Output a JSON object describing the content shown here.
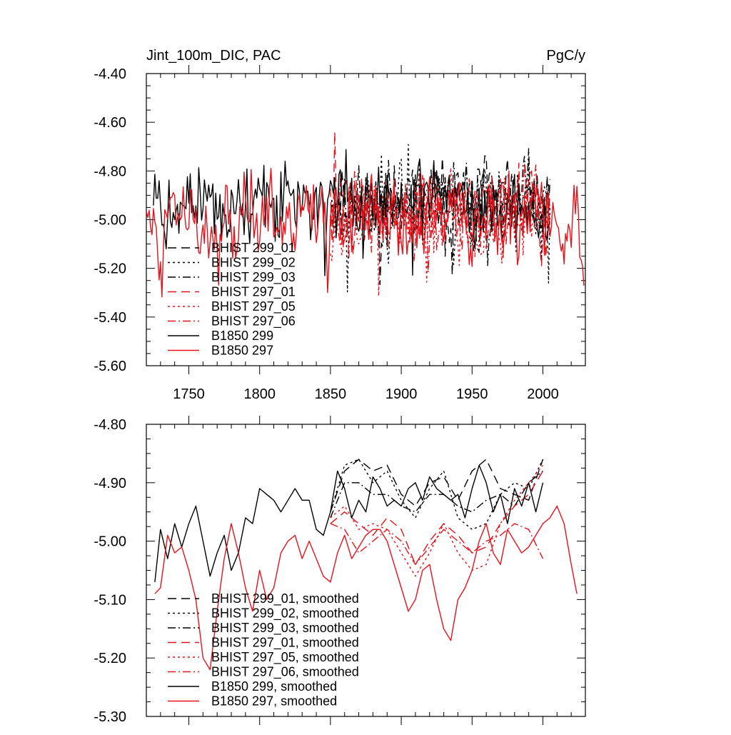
{
  "colors": {
    "black": "#000000",
    "red": "#e8111a"
  },
  "chart_data": [
    {
      "type": "line",
      "title_left": "Jint_100m_DIC, PAC",
      "title_right": "PgC/y",
      "xlim": [
        1720,
        2030
      ],
      "ylim": [
        -5.6,
        -4.4
      ],
      "xticks": [
        1750,
        1800,
        1850,
        1900,
        1950,
        2000
      ],
      "yticks": [
        -5.6,
        -5.4,
        -5.2,
        -5.0,
        -4.8,
        -4.6,
        -4.4
      ],
      "ytick_labels": [
        "-5.60",
        "-5.40",
        "-5.20",
        "-5.00",
        "-4.80",
        "-4.60",
        "-4.40"
      ],
      "xtick_labels": [
        "1750",
        "1800",
        "1850",
        "1900",
        "1950",
        "2000"
      ],
      "legend_position": "lower-left",
      "series": [
        {
          "name": "BHIST 299_01",
          "color": "black",
          "dash": "long-dash",
          "x_start": 1850,
          "x_end": 2005,
          "mean": -4.93,
          "spread": 0.15,
          "seed": 11
        },
        {
          "name": "BHIST 299_02",
          "color": "black",
          "dash": "dot",
          "x_start": 1850,
          "x_end": 2005,
          "mean": -4.94,
          "spread": 0.16,
          "seed": 23
        },
        {
          "name": "BHIST 299_03",
          "color": "black",
          "dash": "dash-dot",
          "x_start": 1850,
          "x_end": 2005,
          "mean": -4.93,
          "spread": 0.15,
          "seed": 37
        },
        {
          "name": "BHIST 297_01",
          "color": "red",
          "dash": "long-dash",
          "x_start": 1850,
          "x_end": 2005,
          "mean": -4.97,
          "spread": 0.16,
          "seed": 41
        },
        {
          "name": "BHIST 297_05",
          "color": "red",
          "dash": "dot",
          "x_start": 1850,
          "x_end": 2005,
          "mean": -4.98,
          "spread": 0.16,
          "seed": 53
        },
        {
          "name": "BHIST 297_06",
          "color": "red",
          "dash": "dash-dot",
          "x_start": 1850,
          "x_end": 2005,
          "mean": -4.97,
          "spread": 0.15,
          "seed": 67
        },
        {
          "name": "B1850 299",
          "color": "black",
          "dash": "solid",
          "x_start": 1725,
          "x_end": 2005,
          "mean": -4.93,
          "spread": 0.15,
          "seed": 71
        },
        {
          "name": "B1850 297",
          "color": "red",
          "dash": "solid",
          "x_start": 1720,
          "x_end": 2029,
          "mean": -5.0,
          "spread": 0.16,
          "seed": 83
        }
      ]
    },
    {
      "type": "line",
      "title_left": "",
      "title_right": "",
      "xlim": [
        1720,
        2030
      ],
      "ylim": [
        -5.3,
        -4.8
      ],
      "xticks": [
        1750,
        1800,
        1850,
        1900,
        1950,
        2000
      ],
      "yticks": [
        -5.3,
        -5.2,
        -5.1,
        -5.0,
        -4.9,
        -4.8
      ],
      "ytick_labels": [
        "-5.30",
        "-5.20",
        "-5.10",
        "-5.00",
        "-4.90",
        "-4.80"
      ],
      "legend_position": "lower-left",
      "series": [
        {
          "name": "BHIST 299_01, smoothed",
          "color": "black",
          "dash": "long-dash",
          "x": [
            1850,
            1860,
            1870,
            1880,
            1890,
            1900,
            1910,
            1920,
            1930,
            1940,
            1950,
            1960,
            1970,
            1980,
            1990,
            2000
          ],
          "y": [
            -4.95,
            -4.88,
            -4.86,
            -4.88,
            -4.87,
            -4.92,
            -4.94,
            -4.9,
            -4.89,
            -4.93,
            -4.88,
            -4.86,
            -4.91,
            -4.92,
            -4.93,
            -4.86
          ]
        },
        {
          "name": "BHIST 299_02, smoothed",
          "color": "black",
          "dash": "dot",
          "x": [
            1850,
            1860,
            1870,
            1880,
            1890,
            1900,
            1910,
            1920,
            1930,
            1940,
            1950,
            1960,
            1970,
            1980,
            1990,
            2000
          ],
          "y": [
            -4.95,
            -4.87,
            -4.86,
            -4.9,
            -4.88,
            -4.93,
            -4.96,
            -4.91,
            -4.88,
            -4.96,
            -4.98,
            -4.97,
            -4.92,
            -4.9,
            -4.91,
            -4.86
          ]
        },
        {
          "name": "BHIST 299_03, smoothed",
          "color": "black",
          "dash": "dash-dot",
          "x": [
            1850,
            1860,
            1870,
            1880,
            1890,
            1900,
            1910,
            1920,
            1930,
            1940,
            1950,
            1960,
            1970,
            1980,
            1990,
            2000
          ],
          "y": [
            -4.96,
            -4.9,
            -4.9,
            -4.92,
            -4.92,
            -4.94,
            -4.95,
            -4.92,
            -4.92,
            -4.94,
            -4.95,
            -4.93,
            -4.92,
            -4.94,
            -4.9,
            -4.88
          ]
        },
        {
          "name": "BHIST 297_01, smoothed",
          "color": "red",
          "dash": "long-dash",
          "x": [
            1850,
            1860,
            1870,
            1880,
            1890,
            1900,
            1910,
            1920,
            1930,
            1940,
            1950,
            1960,
            1970,
            1980,
            1990,
            2000
          ],
          "y": [
            -4.97,
            -4.95,
            -4.97,
            -4.99,
            -4.96,
            -4.98,
            -5.04,
            -5.0,
            -4.97,
            -4.99,
            -5.02,
            -5.01,
            -4.97,
            -4.94,
            -4.92,
            -4.88
          ]
        },
        {
          "name": "BHIST 297_05, smoothed",
          "color": "red",
          "dash": "dot",
          "x": [
            1850,
            1860,
            1870,
            1880,
            1890,
            1900,
            1910,
            1920,
            1930,
            1940,
            1950,
            1960,
            1970,
            1980,
            1990,
            2000
          ],
          "y": [
            -4.96,
            -4.94,
            -4.98,
            -4.97,
            -4.98,
            -5.02,
            -5.06,
            -5.02,
            -4.97,
            -5.02,
            -5.05,
            -5.04,
            -4.97,
            -4.93,
            -4.9,
            -4.87
          ]
        },
        {
          "name": "BHIST 297_06, smoothed",
          "color": "red",
          "dash": "dash-dot",
          "x": [
            1850,
            1860,
            1870,
            1880,
            1890,
            1900,
            1910,
            1920,
            1930,
            1940,
            1950,
            1960,
            1970,
            1980,
            1990,
            2000
          ],
          "y": [
            -4.97,
            -4.98,
            -5.02,
            -5.0,
            -4.98,
            -5.0,
            -5.04,
            -5.01,
            -4.98,
            -5.0,
            -5.02,
            -5.0,
            -4.99,
            -4.97,
            -4.98,
            -5.03
          ]
        },
        {
          "name": "B1850 299, smoothed",
          "color": "black",
          "dash": "solid",
          "x": [
            1726,
            1730,
            1735,
            1740,
            1745,
            1750,
            1755,
            1760,
            1765,
            1770,
            1775,
            1780,
            1785,
            1790,
            1795,
            1800,
            1805,
            1810,
            1815,
            1820,
            1825,
            1830,
            1835,
            1840,
            1845,
            1850,
            1855,
            1860,
            1865,
            1870,
            1875,
            1880,
            1885,
            1890,
            1895,
            1900,
            1905,
            1910,
            1915,
            1920,
            1925,
            1930,
            1935,
            1940,
            1945,
            1950,
            1955,
            1960,
            1965,
            1970,
            1975,
            1980,
            1985,
            1990,
            1995,
            2000
          ],
          "y": [
            -5.07,
            -4.98,
            -5.03,
            -4.97,
            -5.01,
            -4.97,
            -4.94,
            -5.0,
            -5.06,
            -5.02,
            -4.99,
            -5.05,
            -5.02,
            -4.96,
            -4.97,
            -4.91,
            -4.92,
            -4.93,
            -4.95,
            -4.93,
            -4.91,
            -4.93,
            -4.93,
            -4.98,
            -4.99,
            -4.95,
            -4.88,
            -4.91,
            -4.96,
            -4.93,
            -4.95,
            -4.89,
            -4.91,
            -4.94,
            -4.93,
            -4.94,
            -4.91,
            -4.9,
            -4.93,
            -4.89,
            -4.91,
            -4.92,
            -4.93,
            -4.92,
            -4.96,
            -4.91,
            -4.87,
            -4.9,
            -4.95,
            -4.92,
            -4.97,
            -4.91,
            -4.94,
            -4.9,
            -4.95,
            -4.9
          ]
        },
        {
          "name": "B1850 297, smoothed",
          "color": "red",
          "dash": "solid",
          "x": [
            1726,
            1730,
            1735,
            1740,
            1745,
            1750,
            1755,
            1760,
            1765,
            1770,
            1775,
            1780,
            1785,
            1790,
            1795,
            1800,
            1805,
            1810,
            1815,
            1820,
            1825,
            1830,
            1835,
            1840,
            1845,
            1850,
            1855,
            1860,
            1865,
            1870,
            1875,
            1880,
            1885,
            1890,
            1895,
            1900,
            1905,
            1910,
            1915,
            1920,
            1925,
            1930,
            1935,
            1940,
            1945,
            1950,
            1955,
            1960,
            1965,
            1970,
            1975,
            1980,
            1985,
            1990,
            1995,
            2000,
            2005,
            2010,
            2015,
            2020,
            2024
          ],
          "y": [
            -5.09,
            -5.08,
            -4.99,
            -5.02,
            -5.01,
            -5.05,
            -5.1,
            -5.2,
            -5.22,
            -5.12,
            -5.03,
            -4.97,
            -5.02,
            -5.08,
            -5.12,
            -5.05,
            -5.1,
            -5.08,
            -5.02,
            -5.0,
            -4.99,
            -5.03,
            -5.0,
            -5.03,
            -5.06,
            -5.07,
            -5.02,
            -4.99,
            -5.03,
            -5.01,
            -4.99,
            -4.98,
            -4.98,
            -5.0,
            -5.04,
            -5.08,
            -5.12,
            -5.1,
            -5.05,
            -5.04,
            -5.1,
            -5.15,
            -5.17,
            -5.1,
            -5.08,
            -5.05,
            -5.0,
            -4.97,
            -5.02,
            -5.04,
            -4.98,
            -5.0,
            -5.02,
            -5.01,
            -4.99,
            -4.97,
            -4.96,
            -4.94,
            -4.97,
            -5.04,
            -5.09
          ]
        }
      ]
    }
  ]
}
